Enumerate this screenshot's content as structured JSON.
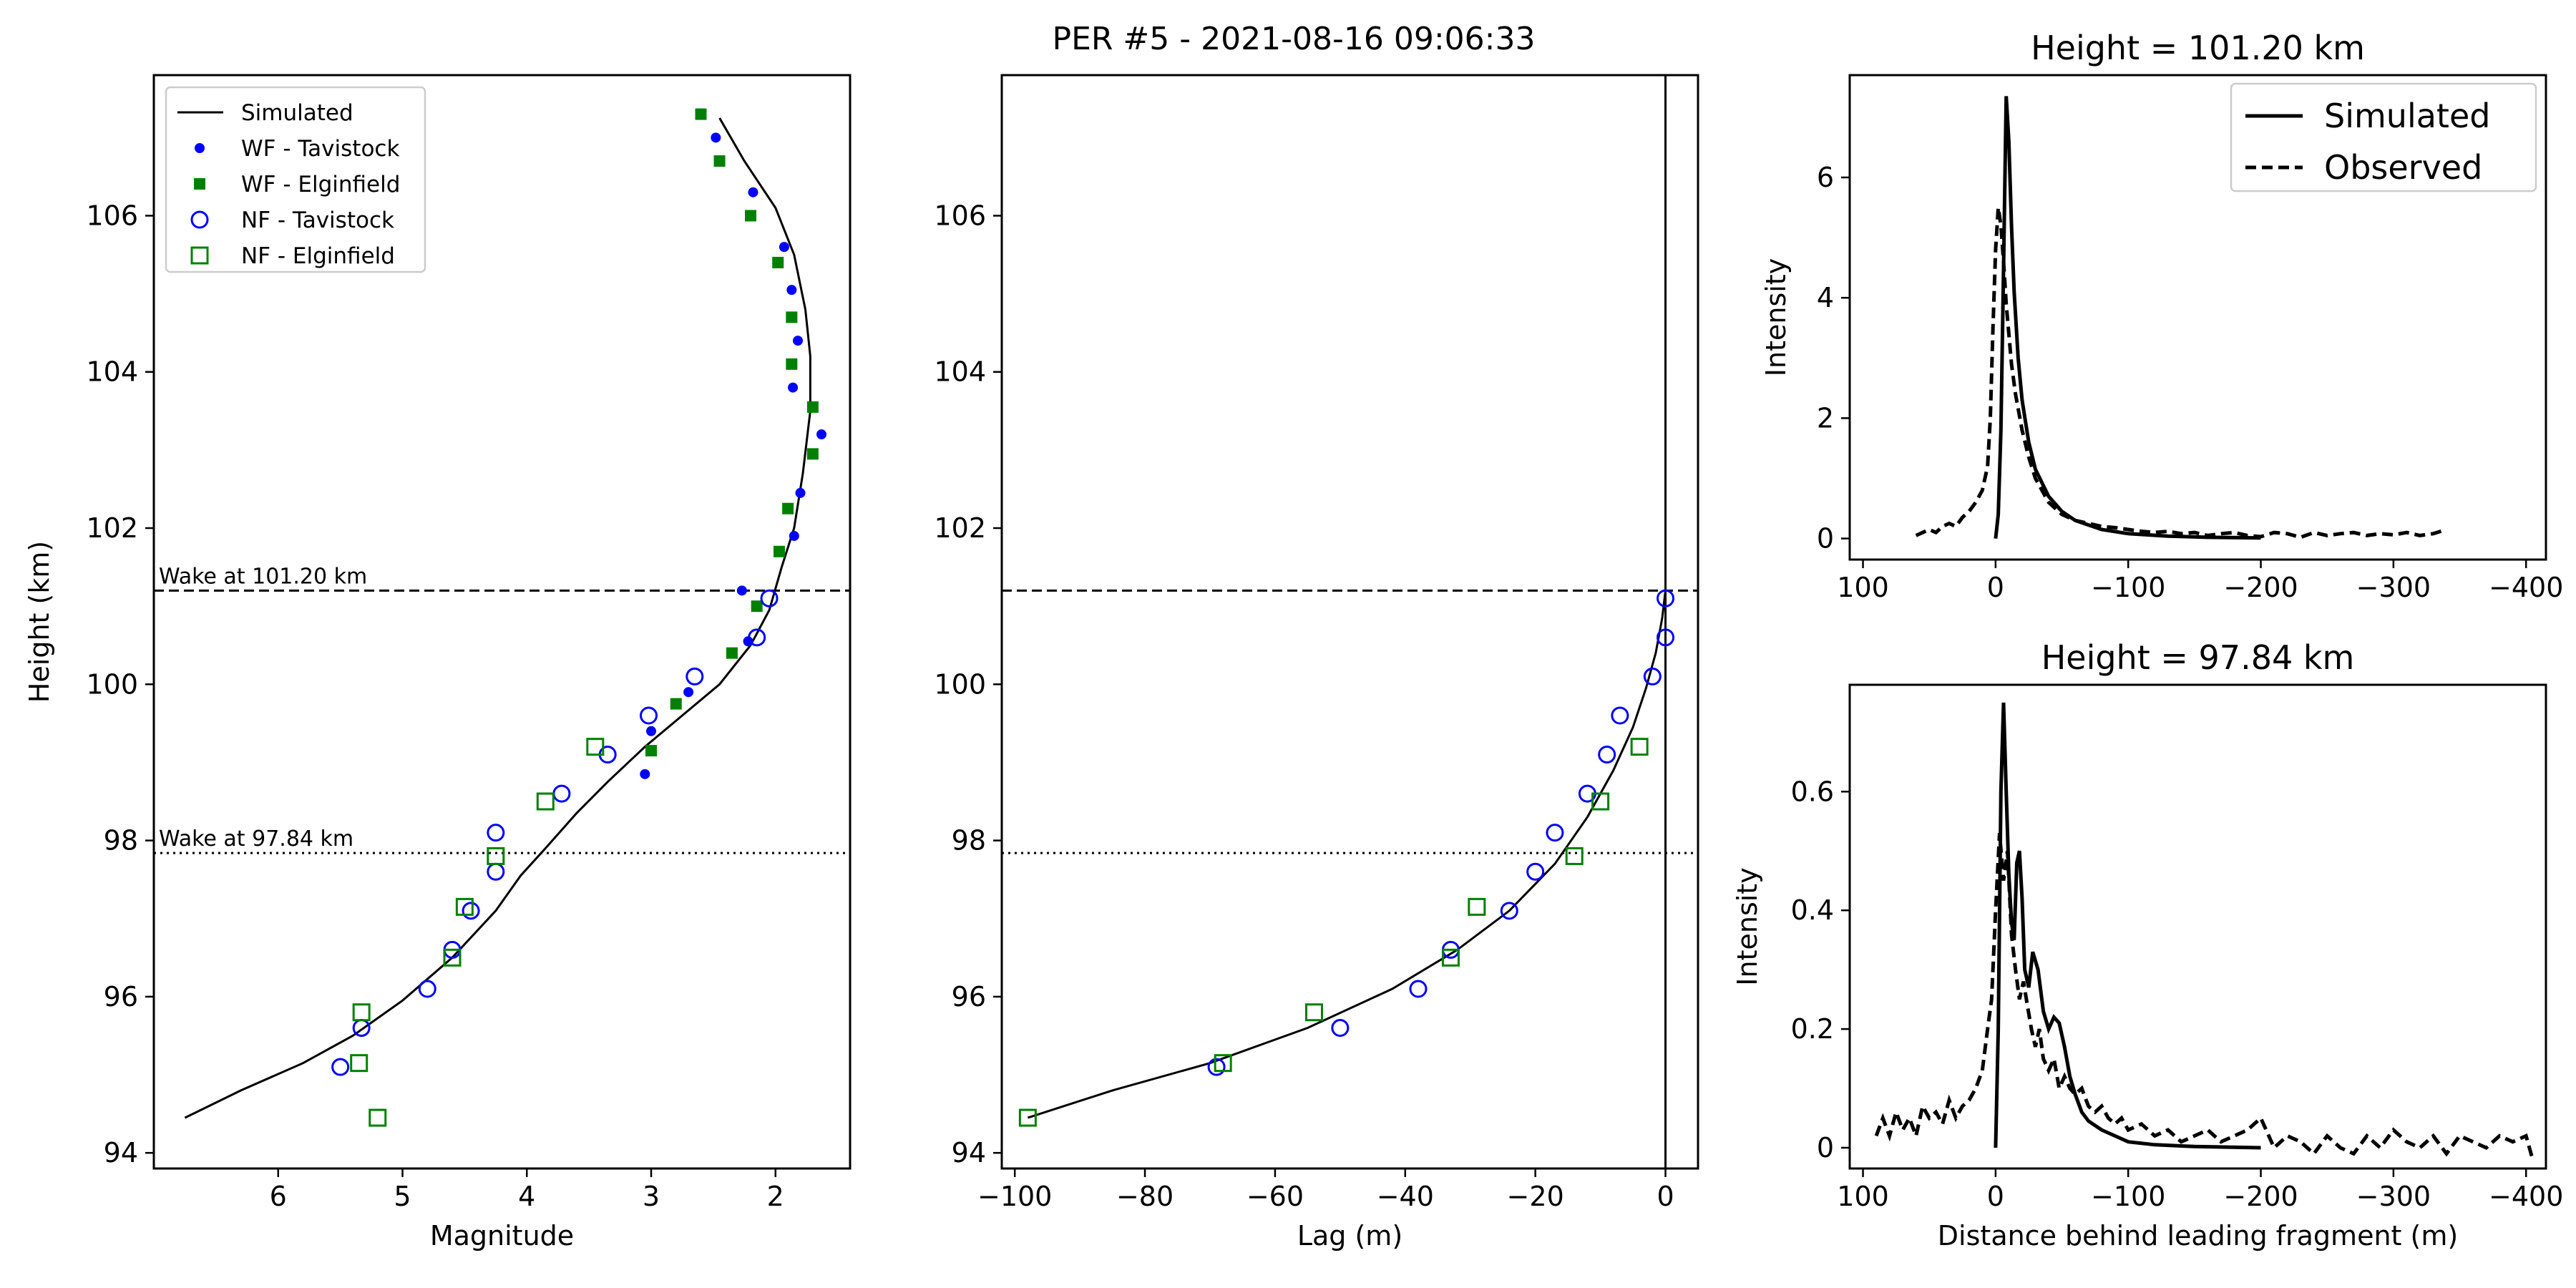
{
  "figure": {
    "suptitle": "PER #5 - 2021-08-16 09:06:33"
  },
  "colors": {
    "wf_tavistock": "#0000ff",
    "wf_elginfield": "#008000",
    "nf_tavistock": "#0000ff",
    "nf_elginfield": "#008000",
    "line": "#000000"
  },
  "chart_data": [
    {
      "id": "magnitude",
      "type": "scatter",
      "title": "",
      "xlabel": "Magnitude",
      "ylabel": "Height (km)",
      "xlim": [
        7.0,
        1.4
      ],
      "ylim": [
        93.8,
        107.8
      ],
      "x_inverted": true,
      "xticks": [
        6,
        5,
        4,
        3,
        2
      ],
      "yticks": [
        94,
        96,
        98,
        100,
        102,
        104,
        106
      ],
      "legend_placement": "upper-left",
      "hlines": [
        {
          "y": 101.2,
          "style": "dashed",
          "label": "Wake at 101.20 km"
        },
        {
          "y": 97.84,
          "style": "dotted",
          "label": "Wake at 97.84 km"
        }
      ],
      "series": [
        {
          "name": "Simulated",
          "kind": "line",
          "points": [
            [
              6.75,
              94.45
            ],
            [
              6.3,
              94.8
            ],
            [
              5.8,
              95.15
            ],
            [
              5.4,
              95.5
            ],
            [
              5.0,
              95.95
            ],
            [
              4.6,
              96.5
            ],
            [
              4.25,
              97.1
            ],
            [
              4.05,
              97.55
            ],
            [
              3.85,
              97.9
            ],
            [
              3.6,
              98.35
            ],
            [
              3.35,
              98.75
            ],
            [
              3.05,
              99.2
            ],
            [
              2.75,
              99.6
            ],
            [
              2.45,
              100.0
            ],
            [
              2.2,
              100.5
            ],
            [
              2.05,
              100.95
            ],
            [
              1.95,
              101.5
            ],
            [
              1.85,
              102.0
            ],
            [
              1.78,
              102.7
            ],
            [
              1.72,
              103.5
            ],
            [
              1.72,
              104.2
            ],
            [
              1.76,
              104.8
            ],
            [
              1.85,
              105.5
            ],
            [
              2.0,
              106.1
            ],
            [
              2.25,
              106.7
            ],
            [
              2.45,
              107.25
            ]
          ]
        },
        {
          "name": "WF - Tavistock",
          "kind": "markers",
          "marker": "filled-circle",
          "points": [
            [
              2.48,
              107.0
            ],
            [
              2.18,
              106.3
            ],
            [
              1.93,
              105.6
            ],
            [
              1.87,
              105.05
            ],
            [
              1.82,
              104.4
            ],
            [
              1.86,
              103.8
            ],
            [
              1.63,
              103.2
            ],
            [
              1.8,
              102.45
            ],
            [
              1.85,
              101.9
            ],
            [
              2.27,
              101.2
            ],
            [
              2.22,
              100.55
            ],
            [
              2.7,
              99.9
            ],
            [
              3.0,
              99.4
            ],
            [
              3.05,
              98.85
            ]
          ]
        },
        {
          "name": "WF - Elginfield",
          "kind": "markers",
          "marker": "filled-square",
          "points": [
            [
              2.6,
              107.3
            ],
            [
              2.45,
              106.7
            ],
            [
              2.2,
              106.0
            ],
            [
              1.98,
              105.4
            ],
            [
              1.87,
              104.7
            ],
            [
              1.87,
              104.1
            ],
            [
              1.7,
              103.55
            ],
            [
              1.7,
              102.95
            ],
            [
              1.9,
              102.25
            ],
            [
              1.97,
              101.7
            ],
            [
              2.15,
              101.0
            ],
            [
              2.35,
              100.4
            ],
            [
              2.8,
              99.75
            ],
            [
              3.0,
              99.15
            ]
          ]
        },
        {
          "name": "NF - Tavistock",
          "kind": "markers",
          "marker": "open-circle",
          "points": [
            [
              2.05,
              101.1
            ],
            [
              2.15,
              100.6
            ],
            [
              2.65,
              100.1
            ],
            [
              3.02,
              99.6
            ],
            [
              3.35,
              99.1
            ],
            [
              3.72,
              98.6
            ],
            [
              4.25,
              98.1
            ],
            [
              4.25,
              97.6
            ],
            [
              4.45,
              97.1
            ],
            [
              4.6,
              96.6
            ],
            [
              4.8,
              96.1
            ],
            [
              5.33,
              95.6
            ],
            [
              5.5,
              95.1
            ]
          ]
        },
        {
          "name": "NF - Elginfield",
          "kind": "markers",
          "marker": "open-square",
          "points": [
            [
              3.45,
              99.2
            ],
            [
              3.85,
              98.5
            ],
            [
              4.25,
              97.8
            ],
            [
              4.5,
              97.15
            ],
            [
              4.6,
              96.5
            ],
            [
              5.33,
              95.8
            ],
            [
              5.35,
              95.15
            ],
            [
              5.2,
              94.45
            ]
          ]
        }
      ]
    },
    {
      "id": "lag",
      "type": "scatter",
      "title": "",
      "xlabel": "Lag (m)",
      "ylabel": "",
      "xlim": [
        -102,
        5
      ],
      "ylim": [
        93.8,
        107.8
      ],
      "xticks": [
        -100,
        -80,
        -60,
        -40,
        -20,
        0
      ],
      "yticks": [
        94,
        96,
        98,
        100,
        102,
        104,
        106
      ],
      "vline_x": 0,
      "hlines": [
        {
          "y": 101.2,
          "style": "dashed"
        },
        {
          "y": 97.84,
          "style": "dotted"
        }
      ],
      "series": [
        {
          "name": "Simulated",
          "kind": "line",
          "points": [
            [
              -98,
              94.45
            ],
            [
              -85,
              94.8
            ],
            [
              -70,
              95.15
            ],
            [
              -55,
              95.6
            ],
            [
              -42,
              96.1
            ],
            [
              -32,
              96.6
            ],
            [
              -24,
              97.1
            ],
            [
              -17,
              97.7
            ],
            [
              -12,
              98.3
            ],
            [
              -8,
              98.9
            ],
            [
              -5,
              99.45
            ],
            [
              -3,
              99.95
            ],
            [
              -1.5,
              100.4
            ],
            [
              -0.5,
              100.85
            ],
            [
              0,
              101.2
            ]
          ]
        },
        {
          "name": "NF - Tavistock",
          "kind": "markers",
          "marker": "open-circle",
          "points": [
            [
              0,
              101.1
            ],
            [
              0,
              100.6
            ],
            [
              -2,
              100.1
            ],
            [
              -7,
              99.6
            ],
            [
              -9,
              99.1
            ],
            [
              -12,
              98.6
            ],
            [
              -17,
              98.1
            ],
            [
              -20,
              97.6
            ],
            [
              -24,
              97.1
            ],
            [
              -33,
              96.6
            ],
            [
              -38,
              96.1
            ],
            [
              -50,
              95.6
            ],
            [
              -69,
              95.1
            ]
          ]
        },
        {
          "name": "NF - Elginfield",
          "kind": "markers",
          "marker": "open-square",
          "points": [
            [
              -4,
              99.2
            ],
            [
              -10,
              98.5
            ],
            [
              -14,
              97.8
            ],
            [
              -29,
              97.15
            ],
            [
              -33,
              96.5
            ],
            [
              -54,
              95.8
            ],
            [
              -68,
              95.15
            ],
            [
              -98,
              94.45
            ]
          ]
        }
      ]
    },
    {
      "id": "profile-101",
      "type": "line",
      "title": "Height = 101.20 km",
      "xlabel": "",
      "ylabel": "Intensity",
      "xlim": [
        110,
        -415
      ],
      "ylim": [
        -0.35,
        7.7
      ],
      "x_inverted": true,
      "xticks": [
        100,
        0,
        -100,
        -200,
        -300,
        -400
      ],
      "yticks": [
        0,
        2,
        4,
        6
      ],
      "legend_placement": "upper-right",
      "series": [
        {
          "name": "Simulated",
          "style": "solid",
          "x": [
            0,
            -2,
            -4,
            -6,
            -8,
            -10,
            -12,
            -14,
            -17,
            -20,
            -25,
            -30,
            -40,
            -50,
            -60,
            -80,
            -100,
            -130,
            -160,
            -200
          ],
          "y": [
            0,
            0.4,
            1.8,
            4.5,
            7.35,
            6.6,
            5.2,
            4.1,
            3.0,
            2.3,
            1.6,
            1.15,
            0.7,
            0.45,
            0.3,
            0.15,
            0.08,
            0.04,
            0.02,
            0.01
          ]
        },
        {
          "name": "Observed",
          "style": "dashed",
          "x": [
            60,
            55,
            50,
            45,
            40,
            35,
            30,
            25,
            20,
            15,
            10,
            6,
            4,
            2,
            0,
            -2,
            -4,
            -6,
            -8,
            -10,
            -12,
            -15,
            -20,
            -25,
            -30,
            -40,
            -50,
            -60,
            -70,
            -80,
            -90,
            -100,
            -110,
            -120,
            -130,
            -140,
            -150,
            -160,
            -170,
            -180,
            -190,
            -200,
            -210,
            -220,
            -230,
            -240,
            -250,
            -260,
            -270,
            -280,
            -290,
            -300,
            -310,
            -320,
            -330,
            -340
          ],
          "y": [
            0.05,
            0.1,
            0.15,
            0.1,
            0.2,
            0.25,
            0.2,
            0.35,
            0.45,
            0.6,
            0.8,
            1.2,
            2.0,
            3.5,
            4.8,
            5.5,
            5.2,
            4.6,
            3.9,
            3.4,
            2.9,
            2.4,
            1.8,
            1.35,
            1.0,
            0.6,
            0.4,
            0.3,
            0.25,
            0.2,
            0.18,
            0.15,
            0.12,
            0.1,
            0.12,
            0.08,
            0.1,
            0.05,
            0.08,
            0.1,
            0.05,
            0.03,
            0.1,
            0.08,
            0.02,
            0.1,
            0.05,
            0.08,
            0.1,
            0.05,
            0.08,
            0.06,
            0.1,
            0.05,
            0.08,
            0.15
          ]
        }
      ]
    },
    {
      "id": "profile-97",
      "type": "line",
      "title": "Height = 97.84 km",
      "xlabel": "Distance behind leading fragment (m)",
      "ylabel": "Intensity",
      "xlim": [
        110,
        -415
      ],
      "ylim": [
        -0.035,
        0.78
      ],
      "x_inverted": true,
      "xticks": [
        100,
        0,
        -100,
        -200,
        -300,
        -400
      ],
      "yticks": [
        0.0,
        0.2,
        0.4,
        0.6
      ],
      "series": [
        {
          "name": "Simulated",
          "style": "solid",
          "x": [
            0,
            -2,
            -4,
            -6,
            -8,
            -10,
            -12,
            -14,
            -16,
            -18,
            -20,
            -22,
            -25,
            -28,
            -32,
            -36,
            -40,
            -44,
            -48,
            -52,
            -56,
            -60,
            -65,
            -70,
            -80,
            -90,
            -100,
            -120,
            -150,
            -200
          ],
          "y": [
            0,
            0.2,
            0.6,
            0.75,
            0.6,
            0.46,
            0.38,
            0.35,
            0.48,
            0.5,
            0.42,
            0.3,
            0.27,
            0.33,
            0.3,
            0.23,
            0.2,
            0.22,
            0.21,
            0.17,
            0.12,
            0.09,
            0.06,
            0.045,
            0.03,
            0.02,
            0.01,
            0.005,
            0.002,
            0
          ]
        },
        {
          "name": "Observed",
          "style": "dashed",
          "x": [
            90,
            85,
            80,
            75,
            70,
            65,
            60,
            55,
            50,
            45,
            40,
            35,
            30,
            25,
            20,
            15,
            10,
            6,
            3,
            0,
            -3,
            -6,
            -9,
            -12,
            -15,
            -18,
            -21,
            -24,
            -27,
            -30,
            -33,
            -36,
            -40,
            -44,
            -48,
            -52,
            -56,
            -60,
            -65,
            -70,
            -75,
            -80,
            -85,
            -90,
            -95,
            -100,
            -110,
            -120,
            -130,
            -140,
            -150,
            -160,
            -170,
            -180,
            -190,
            -200,
            -210,
            -220,
            -230,
            -240,
            -250,
            -260,
            -270,
            -280,
            -290,
            -300,
            -310,
            -320,
            -330,
            -340,
            -350,
            -360,
            -370,
            -380,
            -390,
            -400,
            -405
          ],
          "y": [
            0.02,
            0.05,
            0.02,
            0.06,
            0.03,
            0.05,
            0.02,
            0.07,
            0.05,
            0.06,
            0.04,
            0.08,
            0.05,
            0.07,
            0.08,
            0.1,
            0.13,
            0.2,
            0.25,
            0.4,
            0.53,
            0.45,
            0.5,
            0.36,
            0.3,
            0.25,
            0.28,
            0.24,
            0.2,
            0.17,
            0.2,
            0.15,
            0.13,
            0.15,
            0.1,
            0.12,
            0.1,
            0.09,
            0.1,
            0.07,
            0.06,
            0.07,
            0.05,
            0.04,
            0.05,
            0.03,
            0.04,
            0.02,
            0.03,
            0.01,
            0.02,
            0.03,
            0.01,
            0.02,
            0.03,
            0.05,
            0.0,
            0.02,
            0.01,
            -0.01,
            0.02,
            0.0,
            -0.01,
            0.02,
            0.0,
            0.03,
            0.01,
            0.0,
            0.02,
            -0.01,
            0.02,
            0.01,
            0.0,
            0.02,
            0.01,
            0.02,
            -0.02
          ]
        }
      ]
    }
  ]
}
